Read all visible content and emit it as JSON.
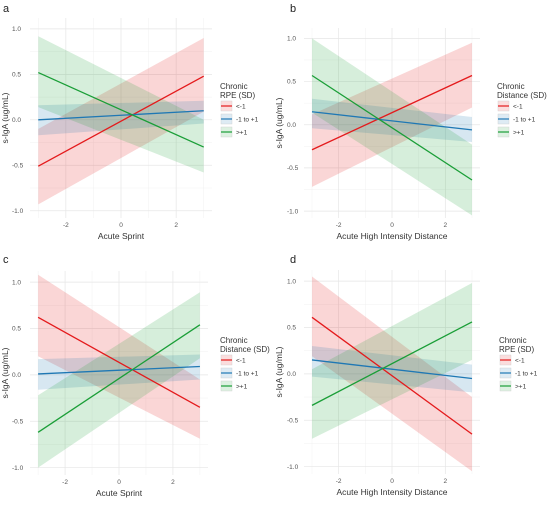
{
  "chart_data": [
    {
      "panel": "a",
      "type": "line",
      "xlabel": "Acute Sprint",
      "ylabel": "s-IgA (ug/mL)",
      "xlim": [
        -3.3,
        3.3
      ],
      "ylim": [
        -1.08,
        1.12
      ],
      "x_ticks": [
        -2,
        0,
        2
      ],
      "y_ticks": [
        -1.0,
        -0.5,
        0.0,
        0.5,
        1.0
      ],
      "legend_title": [
        "Chronic",
        "RPE (SD)"
      ],
      "legend_position": "right",
      "grid": true,
      "series": [
        {
          "name": "<-1",
          "color": "#e41a1c",
          "x": [
            -3,
            3
          ],
          "y": [
            -0.51,
            0.48
          ],
          "ci_lower": [
            -0.93,
            0.09
          ],
          "ci_upper": [
            -0.1,
            0.9
          ]
        },
        {
          "name": "-1 to +1",
          "color": "#1f78b4",
          "x": [
            -3,
            3
          ],
          "y": [
            0.0,
            0.1
          ],
          "ci_lower": [
            -0.17,
            -0.04
          ],
          "ci_upper": [
            0.16,
            0.21
          ]
        },
        {
          "name": ">+1",
          "color": "#1a9e37",
          "x": [
            -3,
            3
          ],
          "y": [
            0.52,
            -0.3
          ],
          "ci_lower": [
            0.14,
            -0.58
          ],
          "ci_upper": [
            0.92,
            -0.0
          ]
        }
      ]
    },
    {
      "panel": "b",
      "type": "line",
      "xlabel": "Acute High Intensity Distance",
      "ylabel": "s-IgA (ug/mL)",
      "xlim": [
        -3.3,
        3.3
      ],
      "ylim": [
        -1.08,
        1.12
      ],
      "x_ticks": [
        -2,
        0,
        2
      ],
      "y_ticks": [
        -1.0,
        -0.5,
        0.0,
        0.5,
        1.0
      ],
      "legend_title": [
        "Chronic",
        "Distance (SD)"
      ],
      "legend_position": "right",
      "grid": true,
      "series": [
        {
          "name": "<-1",
          "color": "#e41a1c",
          "x": [
            -3,
            3
          ],
          "y": [
            -0.29,
            0.57
          ],
          "ci_lower": [
            -0.72,
            0.2
          ],
          "ci_upper": [
            0.12,
            0.95
          ]
        },
        {
          "name": "-1 to +1",
          "color": "#1f78b4",
          "x": [
            -3,
            3
          ],
          "y": [
            0.15,
            -0.06
          ],
          "ci_lower": [
            -0.04,
            -0.2
          ],
          "ci_upper": [
            0.3,
            0.09
          ]
        },
        {
          "name": ">+1",
          "color": "#1a9e37",
          "x": [
            -3,
            3
          ],
          "y": [
            0.57,
            -0.64
          ],
          "ci_lower": [
            0.14,
            -1.05
          ],
          "ci_upper": [
            1.0,
            -0.23
          ]
        }
      ]
    },
    {
      "panel": "c",
      "type": "line",
      "xlabel": "Acute Sprint",
      "ylabel": "s-IgA (ug/mL)",
      "xlim": [
        -3.3,
        3.3
      ],
      "ylim": [
        -1.08,
        1.12
      ],
      "x_ticks": [
        -2,
        0,
        2
      ],
      "y_ticks": [
        -1.0,
        -0.5,
        0.0,
        0.5,
        1.0
      ],
      "legend_title": [
        "Chronic",
        "Distance (SD)"
      ],
      "legend_position": "right",
      "grid": true,
      "series": [
        {
          "name": "<-1",
          "color": "#e41a1c",
          "x": [
            -3,
            3
          ],
          "y": [
            0.62,
            -0.35
          ],
          "ci_lower": [
            0.2,
            -0.69
          ],
          "ci_upper": [
            1.08,
            -0.05
          ]
        },
        {
          "name": "-1 to +1",
          "color": "#1f78b4",
          "x": [
            -3,
            3
          ],
          "y": [
            0.01,
            0.09
          ],
          "ci_lower": [
            -0.16,
            -0.05
          ],
          "ci_upper": [
            0.17,
            0.22
          ]
        },
        {
          "name": ">+1",
          "color": "#1a9e37",
          "x": [
            -3,
            3
          ],
          "y": [
            -0.62,
            0.54
          ],
          "ci_lower": [
            -1.0,
            0.18
          ],
          "ci_upper": [
            -0.22,
            0.89
          ]
        }
      ]
    },
    {
      "panel": "d",
      "type": "line",
      "xlabel": "Acute High Intensity Distance",
      "ylabel": "s-IgA (ug/mL)",
      "xlim": [
        -3.3,
        3.3
      ],
      "ylim": [
        -1.08,
        1.12
      ],
      "x_ticks": [
        -2,
        0,
        2
      ],
      "y_ticks": [
        -1.0,
        -0.5,
        0.0,
        0.5,
        1.0
      ],
      "legend_title": [
        "Chronic",
        "RPE (SD)"
      ],
      "legend_position": "right",
      "grid": true,
      "series": [
        {
          "name": "<-1",
          "color": "#e41a1c",
          "x": [
            -3,
            3
          ],
          "y": [
            0.61,
            -0.65
          ],
          "ci_lower": [
            0.19,
            -1.05
          ],
          "ci_upper": [
            1.05,
            -0.25
          ]
        },
        {
          "name": "-1 to +1",
          "color": "#1f78b4",
          "x": [
            -3,
            3
          ],
          "y": [
            0.15,
            -0.05
          ],
          "ci_lower": [
            -0.03,
            -0.2
          ],
          "ci_upper": [
            0.3,
            0.1
          ]
        },
        {
          "name": ">+1",
          "color": "#1a9e37",
          "x": [
            -3,
            3
          ],
          "y": [
            -0.34,
            0.56
          ],
          "ci_lower": [
            -0.7,
            0.15
          ],
          "ci_upper": [
            0.05,
            0.98
          ]
        }
      ]
    }
  ]
}
